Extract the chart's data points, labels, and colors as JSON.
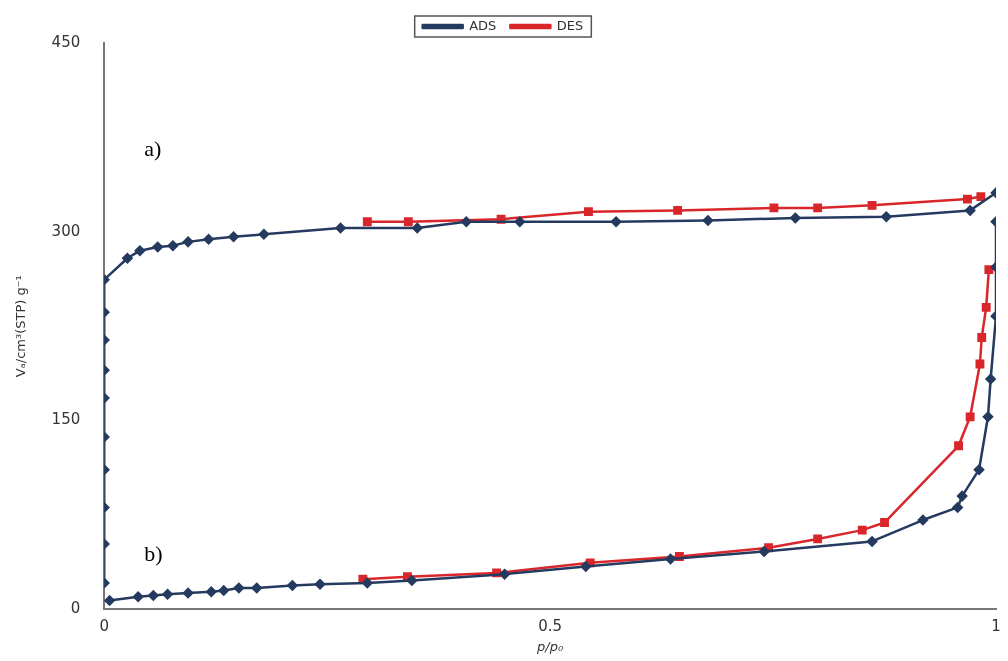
{
  "chart_data": {
    "type": "line",
    "xlabel": "p/p₀",
    "ylabel": "Vₐ/cm³(STP) g⁻¹",
    "xlim": [
      0,
      1
    ],
    "xticks": [
      0,
      0.5,
      1
    ],
    "ylim": [
      0,
      450
    ],
    "yticks": [
      0,
      150,
      300,
      450
    ],
    "grid": false,
    "legend": "top",
    "line_style": "solid",
    "annotations": [
      "a)",
      "b)"
    ],
    "series": [
      {
        "name": "ADS",
        "color": "#243a5e",
        "marker": "diamond",
        "x": [
          0,
          0,
          0,
          0,
          0,
          0,
          0,
          0,
          0,
          0,
          0.026,
          0.04,
          0.06,
          0.077,
          0.094,
          0.117,
          0.145,
          0.179,
          0.265,
          0.351,
          0.406,
          0.466,
          0.574,
          0.677,
          0.775,
          0.877,
          0.971,
          1.0
        ],
        "values": [
          21,
          52,
          81,
          111,
          137,
          168,
          190,
          214,
          236,
          262,
          279,
          285,
          288,
          289,
          292,
          294,
          296,
          298,
          303,
          303,
          308,
          308,
          308,
          309,
          311,
          312,
          317,
          331
        ]
      },
      {
        "name": "DES",
        "color": "#d9262b",
        "marker": "square",
        "x": [
          0.295,
          0.341,
          0.445,
          0.543,
          0.643,
          0.751,
          0.8,
          0.861,
          0.968,
          0.983
        ],
        "values": [
          308,
          308,
          310,
          316,
          317,
          319,
          319,
          321,
          326,
          328
        ]
      },
      {
        "color": "#243a5e",
        "marker": "diamond",
        "x": [
          0.006,
          0.038,
          0.055,
          0.071,
          0.094,
          0.12,
          0.134,
          0.151,
          0.171,
          0.211,
          0.242,
          0.295,
          0.345,
          0.449,
          0.54,
          0.635,
          0.74,
          0.861,
          0.918,
          0.957,
          0.962,
          0.981,
          0.991,
          0.994,
          1.0,
          1.0,
          1.0
        ],
        "values": [
          7,
          10,
          11,
          12,
          13,
          14,
          15,
          17,
          17,
          19,
          20,
          21,
          23,
          28,
          34,
          40,
          46,
          54,
          71,
          81,
          90,
          111,
          153,
          183,
          233,
          272,
          308
        ]
      },
      {
        "color": "#d9262b",
        "marker": "square",
        "x": [
          0.29,
          0.34,
          0.44,
          0.545,
          0.645,
          0.745,
          0.8,
          0.85,
          0.875,
          0.958,
          0.971,
          0.982,
          0.984,
          0.989,
          0.992
        ],
        "values": [
          24,
          26,
          29,
          37,
          42,
          49,
          56,
          63,
          69,
          130,
          153,
          195,
          216,
          240,
          270
        ]
      }
    ]
  }
}
